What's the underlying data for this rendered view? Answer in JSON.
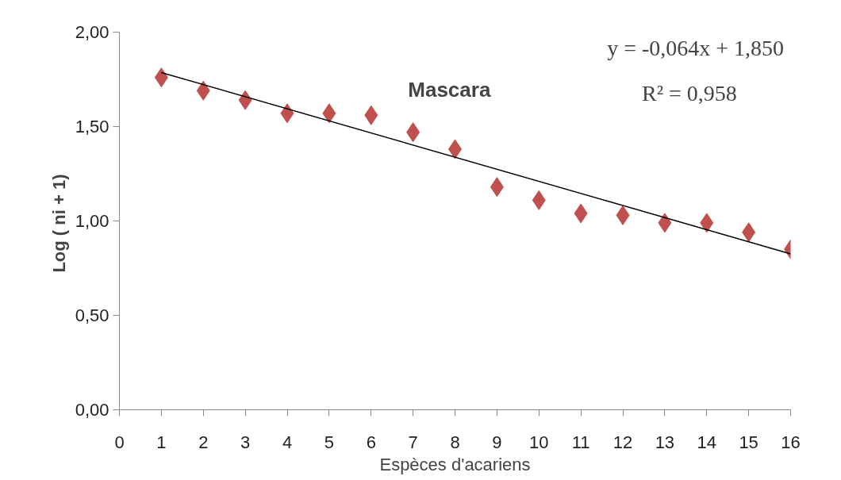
{
  "chart_data": {
    "type": "scatter",
    "xlabel": "Espèces d'acariens",
    "ylabel": "Log ( ni  + 1)",
    "annotations": [
      "Mascara",
      "y = -0,064x + 1,850",
      "R² = 0,958"
    ],
    "x": [
      1,
      2,
      3,
      4,
      5,
      6,
      7,
      8,
      9,
      10,
      11,
      12,
      13,
      14,
      15,
      16
    ],
    "series": [
      {
        "color": "#c0504d",
        "marker": "diamond",
        "values": [
          1.76,
          1.69,
          1.64,
          1.57,
          1.57,
          1.56,
          1.47,
          1.38,
          1.18,
          1.11,
          1.04,
          1.03,
          0.99,
          0.99,
          0.94,
          0.85
        ]
      },
      {
        "type": "line",
        "color": "#000000",
        "x": [
          1,
          16
        ],
        "values": [
          1.786,
          0.826
        ]
      }
    ],
    "xlim": [
      0,
      16
    ],
    "ylim": [
      0,
      2
    ],
    "xticks": [
      0,
      1,
      2,
      3,
      4,
      5,
      6,
      7,
      8,
      9,
      10,
      11,
      12,
      13,
      14,
      15,
      16
    ],
    "yticks": [
      {
        "value": 0,
        "label": "0,00"
      },
      {
        "value": 0.5,
        "label": "0,50"
      },
      {
        "value": 1,
        "label": "1,00"
      },
      {
        "value": 1.5,
        "label": "1,50"
      },
      {
        "value": 2,
        "label": "2,00"
      }
    ],
    "grid": false
  }
}
